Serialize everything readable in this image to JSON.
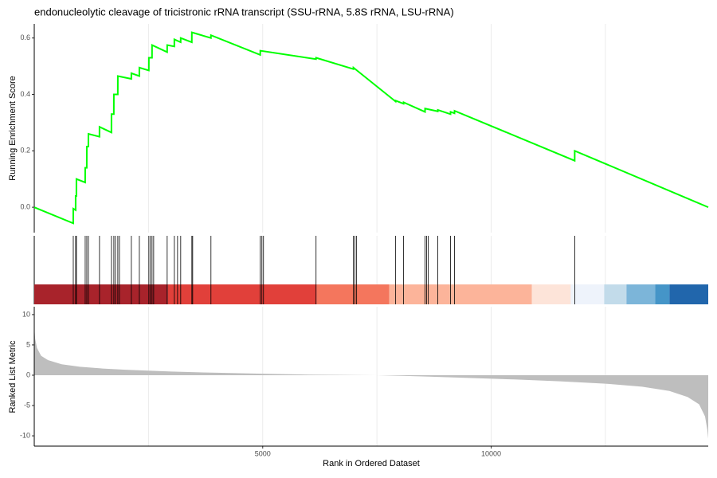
{
  "chart_data": [
    {
      "type": "line",
      "title": "endonucleolytic cleavage of tricistronic rRNA transcript (SSU-rRNA, 5.8S rRNA, LSU-rRNA)",
      "y_label": "Running Enrichment Score",
      "color": "#00ff00",
      "x": [
        0,
        853,
        854,
        905,
        906,
        922,
        923,
        1114,
        1115,
        1149,
        1150,
        1184,
        1185,
        1427,
        1428,
        1689,
        1690,
        1741,
        1742,
        1828,
        1829,
        2124,
        2125,
        2299,
        2300,
        2507,
        2508,
        2577,
        2578,
        2908,
        2909,
        3065,
        3066,
        3204,
        3205,
        3448,
        3449,
        3866,
        3867,
        4946,
        4947,
        6166,
        6167,
        6984,
        6985,
        7908,
        7909,
        8082,
        8083,
        8552,
        8553,
        8831,
        8832,
        9110,
        9111,
        9197,
        9198,
        11827,
        11828,
        14750
      ],
      "values": [
        0,
        -0.057,
        -0.005,
        -0.01,
        0.04,
        0.04,
        0.1,
        0.088,
        0.14,
        0.14,
        0.215,
        0.215,
        0.26,
        0.25,
        0.285,
        0.265,
        0.33,
        0.33,
        0.4,
        0.4,
        0.465,
        0.455,
        0.475,
        0.465,
        0.495,
        0.485,
        0.53,
        0.53,
        0.575,
        0.55,
        0.575,
        0.57,
        0.595,
        0.585,
        0.6,
        0.585,
        0.62,
        0.6,
        0.61,
        0.54,
        0.555,
        0.525,
        0.53,
        0.49,
        0.495,
        0.375,
        0.378,
        0.367,
        0.372,
        0.338,
        0.35,
        0.34,
        0.345,
        0.33,
        0.338,
        0.333,
        0.342,
        0.165,
        0.2,
        0
      ],
      "xlim": [
        0,
        14750
      ],
      "ylim": [
        -0.09,
        0.65
      ],
      "yticks": [
        {
          "value": 0,
          "label": "0.0"
        },
        0.2,
        0.4,
        0.6
      ],
      "x_grid": [
        2500,
        5000,
        7500,
        10000,
        12500
      ]
    },
    {
      "type": "hits",
      "color": "#000000",
      "hits": [
        854,
        906,
        923,
        1115,
        1150,
        1185,
        1428,
        1690,
        1742,
        1777,
        1829,
        1864,
        2125,
        2300,
        2508,
        2543,
        2578,
        2613,
        2909,
        3066,
        3136,
        3205,
        3449,
        3467,
        3867,
        4947,
        4982,
        5017,
        6167,
        6985,
        7020,
        7055,
        7909,
        8083,
        8553,
        8588,
        8623,
        8832,
        9111,
        9198,
        11828
      ],
      "breaks": [
        0,
        2927,
        6184,
        7770,
        10888,
        11741,
        12473,
        12961,
        13588,
        13902,
        14750
      ],
      "colors": [
        "#a8232b",
        "#e1403a",
        "#f4765d",
        "#fcb49a",
        "#fde4d9",
        "#eef3fb",
        "#c2dbea",
        "#7cb5d9",
        "#4595c8",
        "#2166ac"
      ],
      "xlim": [
        0,
        14750
      ],
      "x_grid": [
        2500,
        5000,
        7500,
        10000,
        12500
      ]
    },
    {
      "type": "area",
      "y_label": "Ranked List Metric",
      "x_label": "Rank in Ordered Dataset",
      "color": "#bebebe",
      "x": [
        0,
        20,
        60,
        150,
        300,
        600,
        1000,
        1500,
        2000,
        3000,
        4000,
        5000,
        6000,
        7000,
        7500,
        8500,
        9500,
        10500,
        11500,
        12500,
        13300,
        13900,
        14300,
        14550,
        14680,
        14730,
        14750
      ],
      "values": [
        8,
        6,
        4.5,
        3.2,
        2.5,
        1.8,
        1.4,
        1.1,
        0.9,
        0.6,
        0.4,
        0.25,
        0.1,
        0.03,
        0,
        -0.2,
        -0.45,
        -0.7,
        -1,
        -1.4,
        -1.9,
        -2.6,
        -3.6,
        -4.8,
        -6.8,
        -9,
        -10.5
      ],
      "xlim": [
        0,
        14750
      ],
      "ylim": [
        -11.7,
        11.3
      ],
      "yticks": [
        10,
        5,
        0,
        -5,
        -10
      ],
      "xticks": [
        5000,
        10000
      ],
      "x_grid": [
        2500,
        5000,
        7500,
        10000,
        12500
      ]
    }
  ]
}
